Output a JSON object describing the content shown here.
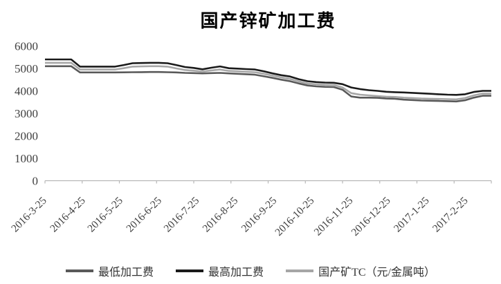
{
  "page": {
    "background": "#ffffff"
  },
  "chart_data": {
    "type": "line",
    "title": "国产锌矿加工费",
    "categories": [
      "2016-3-25",
      "2016-4-25",
      "2016-5-25",
      "2016-6-25",
      "2016-7-25",
      "2016-8-25",
      "2016-9-25",
      "2016-10-25",
      "2016-11-25",
      "2016-12-25",
      "2017-1-25",
      "2017-2-25"
    ],
    "category_week_positions": [
      0,
      4.43,
      8.71,
      13.14,
      17.43,
      21.86,
      26.29,
      30.57,
      35.0,
      39.29,
      43.71,
      48.14
    ],
    "y_ticks": [
      0,
      1000,
      2000,
      3000,
      4000,
      5000,
      6000
    ],
    "ylim": [
      0,
      6000
    ],
    "grid": false,
    "legend_position": "bottom",
    "axis_color": "#b7b7b7",
    "text_color": "#404040",
    "draw_order": [
      0,
      2,
      1
    ],
    "series": [
      {
        "name": "最低加工费",
        "slug": "line-min-processing-fee",
        "color": "#595959",
        "values": [
          5100,
          5100,
          5100,
          5100,
          4820,
          4820,
          4820,
          4820,
          4820,
          4825,
          4830,
          4835,
          4840,
          4840,
          4830,
          4820,
          4800,
          4790,
          4780,
          4790,
          4800,
          4780,
          4760,
          4740,
          4720,
          4650,
          4580,
          4500,
          4430,
          4330,
          4240,
          4200,
          4180,
          4170,
          4050,
          3750,
          3700,
          3700,
          3690,
          3660,
          3650,
          3610,
          3590,
          3570,
          3560,
          3550,
          3540,
          3530,
          3580,
          3700,
          3780,
          3780
        ]
      },
      {
        "name": "最高加工费",
        "slug": "line-max-processing-fee",
        "color": "#1a1a1a",
        "values": [
          5400,
          5400,
          5400,
          5400,
          5080,
          5080,
          5080,
          5080,
          5080,
          5150,
          5230,
          5240,
          5250,
          5250,
          5230,
          5150,
          5060,
          5020,
          4960,
          5030,
          5090,
          5010,
          4990,
          4970,
          4950,
          4870,
          4780,
          4700,
          4640,
          4520,
          4430,
          4390,
          4370,
          4360,
          4300,
          4150,
          4080,
          4030,
          4000,
          3960,
          3940,
          3930,
          3910,
          3890,
          3870,
          3850,
          3830,
          3820,
          3850,
          3950,
          4000,
          4000
        ]
      },
      {
        "name": "国产矿TC（元/金属吨）",
        "slug": "line-domestic-ore-tc",
        "color": "#a6a6a6",
        "values": [
          5250,
          5250,
          5250,
          5250,
          4950,
          4950,
          4950,
          4950,
          4950,
          5010,
          5080,
          5090,
          5100,
          5100,
          5080,
          5000,
          4930,
          4900,
          4860,
          4910,
          4950,
          4890,
          4870,
          4850,
          4830,
          4760,
          4680,
          4600,
          4530,
          4420,
          4330,
          4290,
          4270,
          4260,
          4150,
          3900,
          3830,
          3800,
          3770,
          3740,
          3730,
          3700,
          3680,
          3660,
          3650,
          3640,
          3630,
          3620,
          3680,
          3800,
          3880,
          3880
        ]
      }
    ]
  }
}
